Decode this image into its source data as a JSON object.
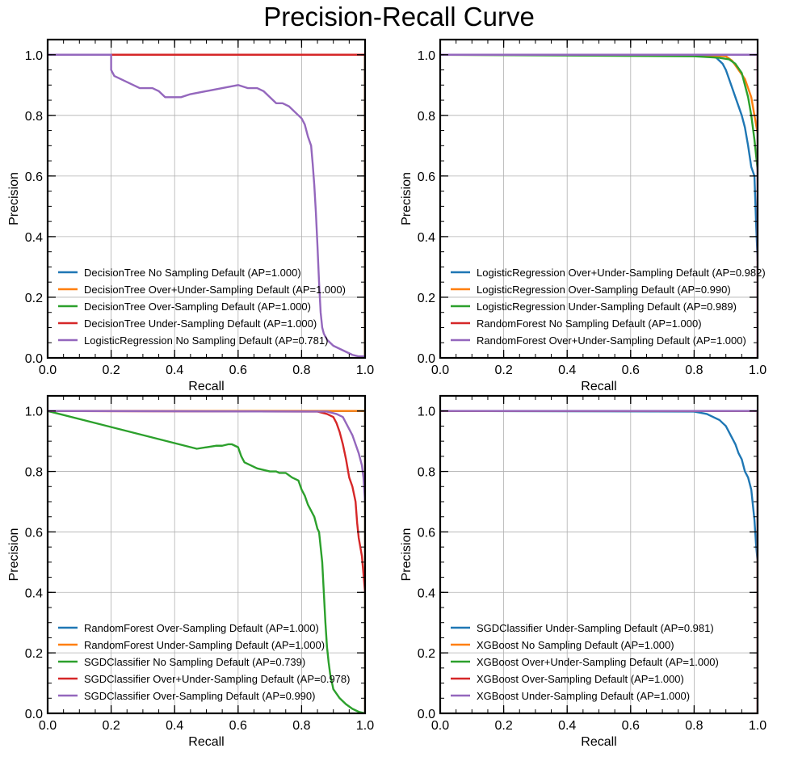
{
  "figure": {
    "title": "Precision-Recall Curve"
  },
  "colors": {
    "blue": "#1f77b4",
    "orange": "#ff7f0e",
    "green": "#2ca02c",
    "red": "#d62728",
    "purple": "#9467bd",
    "grid": "#b0b0b0"
  },
  "chart_data": [
    {
      "type": "line",
      "xlabel": "Recall",
      "ylabel": "Precision",
      "xlim": [
        0,
        1
      ],
      "ylim": [
        0,
        1.05
      ],
      "xticks": [
        "0.0",
        "0.2",
        "0.4",
        "0.6",
        "0.8",
        "1.0"
      ],
      "yticks": [
        "0.0",
        "0.2",
        "0.4",
        "0.6",
        "0.8",
        "1.0"
      ],
      "grid": true,
      "legend_position": "lower-left",
      "series": [
        {
          "name": "DecisionTree No Sampling Default (AP=1.000)",
          "color": "blue",
          "x": [
            0,
            1,
            1
          ],
          "y": [
            1,
            1,
            0
          ]
        },
        {
          "name": "DecisionTree Over+Under-Sampling Default (AP=1.000)",
          "color": "orange",
          "x": [
            0,
            1,
            1
          ],
          "y": [
            1,
            1,
            0
          ]
        },
        {
          "name": "DecisionTree Over-Sampling Default (AP=1.000)",
          "color": "green",
          "x": [
            0,
            1,
            1
          ],
          "y": [
            1,
            1,
            0
          ]
        },
        {
          "name": "DecisionTree Under-Sampling Default (AP=1.000)",
          "color": "red",
          "x": [
            0,
            1,
            1
          ],
          "y": [
            1,
            1,
            0
          ]
        },
        {
          "name": "LogisticRegression No Sampling Default (AP=0.781)",
          "color": "purple",
          "x": [
            0,
            0.2,
            0.2,
            0.21,
            0.23,
            0.25,
            0.27,
            0.29,
            0.31,
            0.33,
            0.35,
            0.36,
            0.37,
            0.38,
            0.39,
            0.4,
            0.42,
            0.45,
            0.5,
            0.55,
            0.6,
            0.63,
            0.66,
            0.68,
            0.69,
            0.7,
            0.72,
            0.74,
            0.76,
            0.78,
            0.8,
            0.81,
            0.82,
            0.83,
            0.835,
            0.84,
            0.845,
            0.85,
            0.855,
            0.86,
            0.865,
            0.87,
            0.88,
            0.89,
            0.9,
            0.92,
            0.94,
            0.96,
            0.98,
            1.0
          ],
          "y": [
            1,
            1,
            0.95,
            0.93,
            0.92,
            0.91,
            0.9,
            0.89,
            0.89,
            0.89,
            0.88,
            0.87,
            0.86,
            0.86,
            0.86,
            0.86,
            0.86,
            0.87,
            0.88,
            0.89,
            0.9,
            0.89,
            0.89,
            0.88,
            0.87,
            0.86,
            0.84,
            0.84,
            0.83,
            0.81,
            0.79,
            0.77,
            0.73,
            0.7,
            0.64,
            0.57,
            0.48,
            0.37,
            0.25,
            0.15,
            0.1,
            0.08,
            0.06,
            0.05,
            0.04,
            0.03,
            0.02,
            0.01,
            0.005,
            0.005
          ]
        }
      ]
    },
    {
      "type": "line",
      "xlabel": "Recall",
      "ylabel": "Precision",
      "xlim": [
        0,
        1
      ],
      "ylim": [
        0,
        1.05
      ],
      "xticks": [
        "0.0",
        "0.2",
        "0.4",
        "0.6",
        "0.8",
        "1.0"
      ],
      "yticks": [
        "0.0",
        "0.2",
        "0.4",
        "0.6",
        "0.8",
        "1.0"
      ],
      "grid": true,
      "legend_position": "lower-left",
      "series": [
        {
          "name": "LogisticRegression Over+Under-Sampling Default (AP=0.982)",
          "color": "blue",
          "x": [
            0,
            0.72,
            0.8,
            0.85,
            0.87,
            0.88,
            0.89,
            0.9,
            0.91,
            0.92,
            0.93,
            0.94,
            0.95,
            0.96,
            0.97,
            0.98,
            0.99,
            0.995,
            1.0
          ],
          "y": [
            1,
            1,
            0.998,
            0.995,
            0.99,
            0.98,
            0.97,
            0.95,
            0.92,
            0.89,
            0.86,
            0.83,
            0.8,
            0.76,
            0.7,
            0.63,
            0.6,
            0.45,
            0.32
          ]
        },
        {
          "name": "LogisticRegression Over-Sampling Default (AP=0.990)",
          "color": "orange",
          "x": [
            0,
            0.85,
            0.9,
            0.92,
            0.94,
            0.96,
            0.97,
            0.98,
            0.99,
            1.0
          ],
          "y": [
            1,
            0.998,
            0.995,
            0.98,
            0.95,
            0.92,
            0.89,
            0.86,
            0.8,
            0.74
          ]
        },
        {
          "name": "LogisticRegression Under-Sampling Default (AP=0.989)",
          "color": "green",
          "x": [
            0,
            0.8,
            0.88,
            0.91,
            0.93,
            0.95,
            0.96,
            0.97,
            0.98,
            0.99,
            1.0
          ],
          "y": [
            1,
            0.995,
            0.99,
            0.985,
            0.97,
            0.94,
            0.9,
            0.86,
            0.8,
            0.72,
            0.62
          ]
        },
        {
          "name": "RandomForest No Sampling Default (AP=1.000)",
          "color": "red",
          "x": [
            0,
            1,
            1
          ],
          "y": [
            1,
            1,
            0
          ]
        },
        {
          "name": "RandomForest Over+Under-Sampling Default (AP=1.000)",
          "color": "purple",
          "x": [
            0,
            1,
            1
          ],
          "y": [
            1,
            1,
            0
          ]
        }
      ]
    },
    {
      "type": "line",
      "xlabel": "Recall",
      "ylabel": "Precision",
      "xlim": [
        0,
        1
      ],
      "ylim": [
        0,
        1.05
      ],
      "xticks": [
        "0.0",
        "0.2",
        "0.4",
        "0.6",
        "0.8",
        "1.0"
      ],
      "yticks": [
        "0.0",
        "0.2",
        "0.4",
        "0.6",
        "0.8",
        "1.0"
      ],
      "grid": true,
      "legend_position": "lower-left",
      "series": [
        {
          "name": "RandomForest Over-Sampling Default (AP=1.000)",
          "color": "blue",
          "x": [
            0,
            1,
            1
          ],
          "y": [
            1,
            1,
            0
          ]
        },
        {
          "name": "RandomForest Under-Sampling Default (AP=1.000)",
          "color": "orange",
          "x": [
            0,
            1,
            1
          ],
          "y": [
            1,
            1,
            0
          ]
        },
        {
          "name": "SGDClassifier No Sampling Default (AP=0.739)",
          "color": "green",
          "x": [
            0,
            0.47,
            0.5,
            0.53,
            0.55,
            0.57,
            0.58,
            0.6,
            0.61,
            0.62,
            0.64,
            0.66,
            0.68,
            0.7,
            0.72,
            0.73,
            0.75,
            0.77,
            0.78,
            0.79,
            0.8,
            0.81,
            0.82,
            0.83,
            0.84,
            0.845,
            0.85,
            0.855,
            0.86,
            0.865,
            0.87,
            0.875,
            0.88,
            0.885,
            0.89,
            0.9,
            0.92,
            0.94,
            0.96,
            0.98,
            1.0
          ],
          "y": [
            1,
            0.875,
            0.88,
            0.885,
            0.885,
            0.89,
            0.89,
            0.88,
            0.85,
            0.83,
            0.82,
            0.81,
            0.805,
            0.8,
            0.8,
            0.795,
            0.795,
            0.78,
            0.775,
            0.77,
            0.74,
            0.72,
            0.69,
            0.67,
            0.65,
            0.63,
            0.61,
            0.6,
            0.55,
            0.5,
            0.4,
            0.3,
            0.22,
            0.17,
            0.13,
            0.08,
            0.05,
            0.03,
            0.015,
            0.005,
            0.0
          ]
        },
        {
          "name": "SGDClassifier Over+Under-Sampling Default (AP=0.978)",
          "color": "red",
          "x": [
            0,
            0.85,
            0.88,
            0.9,
            0.91,
            0.92,
            0.93,
            0.94,
            0.95,
            0.96,
            0.97,
            0.975,
            0.98,
            0.985,
            0.99,
            0.995,
            1.0
          ],
          "y": [
            1,
            0.998,
            0.99,
            0.98,
            0.96,
            0.93,
            0.89,
            0.84,
            0.78,
            0.75,
            0.7,
            0.63,
            0.58,
            0.55,
            0.52,
            0.46,
            0.4
          ]
        },
        {
          "name": "SGDClassifier Over-Sampling Default (AP=0.990)",
          "color": "purple",
          "x": [
            0,
            0.88,
            0.91,
            0.93,
            0.94,
            0.95,
            0.96,
            0.97,
            0.98,
            0.99,
            0.995,
            1.0
          ],
          "y": [
            1,
            0.998,
            0.99,
            0.98,
            0.96,
            0.94,
            0.92,
            0.89,
            0.86,
            0.82,
            0.78,
            0.7
          ]
        }
      ]
    },
    {
      "type": "line",
      "xlabel": "Recall",
      "ylabel": "Precision",
      "xlim": [
        0,
        1
      ],
      "ylim": [
        0,
        1.05
      ],
      "xticks": [
        "0.0",
        "0.2",
        "0.4",
        "0.6",
        "0.8",
        "1.0"
      ],
      "yticks": [
        "0.0",
        "0.2",
        "0.4",
        "0.6",
        "0.8",
        "1.0"
      ],
      "grid": true,
      "legend_position": "lower-left",
      "series": [
        {
          "name": "SGDClassifier Under-Sampling Default (AP=0.981)",
          "color": "blue",
          "x": [
            0,
            0.8,
            0.84,
            0.86,
            0.88,
            0.89,
            0.9,
            0.91,
            0.92,
            0.93,
            0.94,
            0.95,
            0.96,
            0.97,
            0.98,
            0.99,
            0.995,
            1.0
          ],
          "y": [
            1,
            0.998,
            0.99,
            0.98,
            0.97,
            0.96,
            0.95,
            0.93,
            0.91,
            0.89,
            0.86,
            0.84,
            0.8,
            0.78,
            0.74,
            0.64,
            0.56,
            0.5
          ]
        },
        {
          "name": "XGBoost No Sampling Default (AP=1.000)",
          "color": "orange",
          "x": [
            0,
            1,
            1
          ],
          "y": [
            1,
            1,
            0
          ]
        },
        {
          "name": "XGBoost Over+Under-Sampling Default (AP=1.000)",
          "color": "green",
          "x": [
            0,
            1,
            1
          ],
          "y": [
            1,
            1,
            0
          ]
        },
        {
          "name": "XGBoost Over-Sampling Default (AP=1.000)",
          "color": "red",
          "x": [
            0,
            1,
            1
          ],
          "y": [
            1,
            1,
            0
          ]
        },
        {
          "name": "XGBoost Under-Sampling Default (AP=1.000)",
          "color": "purple",
          "x": [
            0,
            1,
            1
          ],
          "y": [
            1,
            1,
            0
          ]
        }
      ]
    }
  ]
}
